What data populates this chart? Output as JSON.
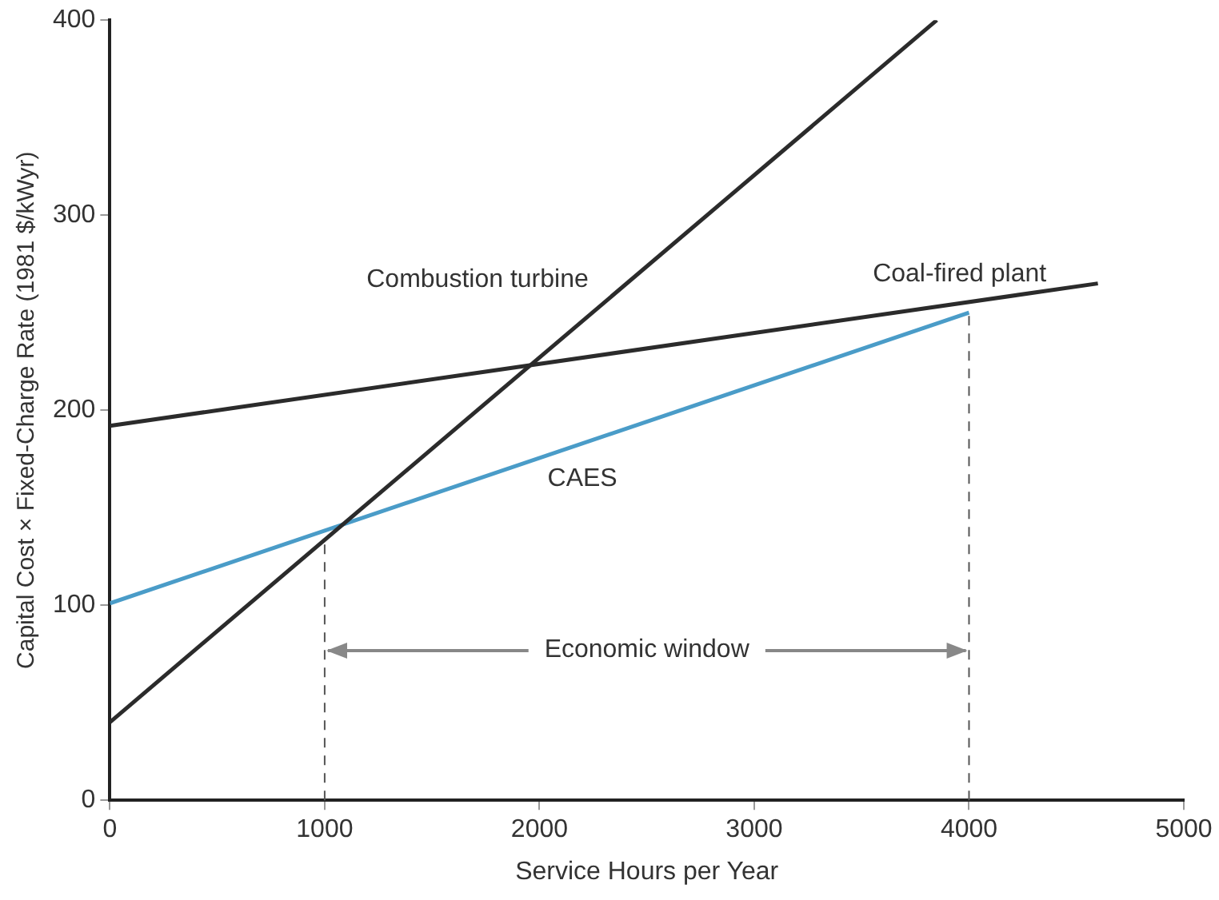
{
  "chart_data": {
    "type": "line",
    "xlabel": "Service Hours per Year",
    "ylabel": "Capital Cost × Fixed-Charge Rate (1981 $/kWyr)",
    "xlim": [
      0,
      5000
    ],
    "xticks": [
      0,
      1000,
      2000,
      3000,
      4000,
      5000
    ],
    "ylim": [
      0,
      400
    ],
    "yticks": [
      0,
      100,
      200,
      300,
      400
    ],
    "grid": false,
    "legend": false,
    "marker": "none",
    "line_style": "solid",
    "series": [
      {
        "name": "Combustion turbine",
        "color": "#2b2b2b",
        "x": [
          0,
          3850
        ],
        "values": [
          40,
          400
        ]
      },
      {
        "name": "Coal-fired plant",
        "color": "#2b2b2b",
        "x": [
          0,
          4600
        ],
        "values": [
          192,
          265
        ]
      },
      {
        "name": "CAES",
        "color": "#4a9cc8",
        "x": [
          0,
          4000
        ],
        "values": [
          101,
          250
        ]
      }
    ],
    "ref_lines": [
      {
        "axis": "x",
        "value": 1000,
        "line_style": "dashed",
        "color": "#555555"
      },
      {
        "axis": "x",
        "value": 4000,
        "line_style": "dashed",
        "color": "#555555"
      }
    ],
    "annotations": [
      {
        "text": "Economic window",
        "x": 1000,
        "y": 77
      }
    ]
  }
}
